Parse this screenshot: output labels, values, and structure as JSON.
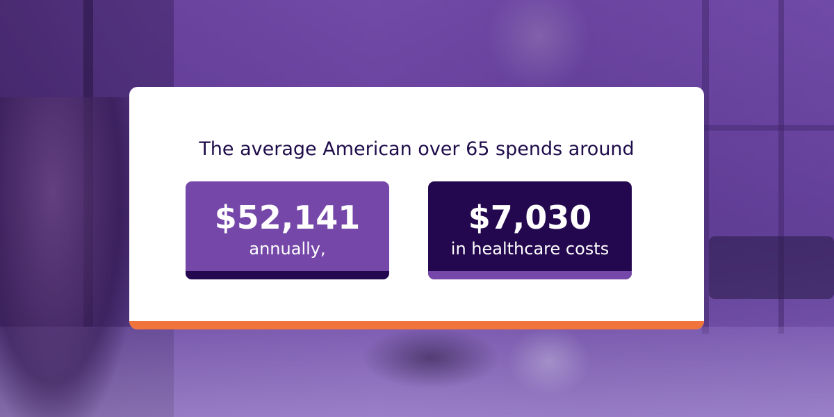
{
  "headline": "The average American over 65 spends around",
  "stats": [
    {
      "value": "$52,141",
      "label": "annually,"
    },
    {
      "value": "$7,030",
      "label": "in healthcare costs"
    }
  ],
  "colors": {
    "card_background": "#ffffff",
    "headline_text": "#1e0c4a",
    "light_purple": "#7447a8",
    "dark_purple": "#24084f",
    "orange_accent": "#f0743c"
  }
}
